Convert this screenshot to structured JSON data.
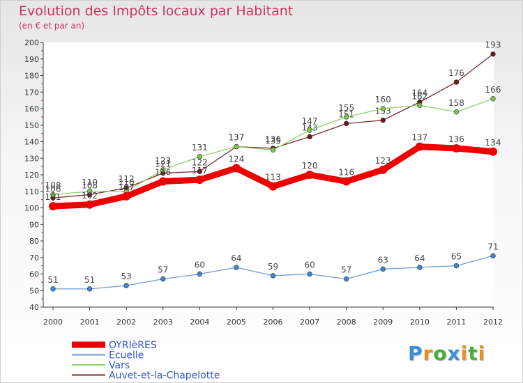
{
  "header": {
    "title": "Evolution des Impôts locaux par Habitant",
    "subtitle": "(en € et par an)"
  },
  "logo": {
    "letters": [
      "P",
      "r",
      "o",
      "x",
      "i",
      "t",
      "i"
    ],
    "colors": [
      "#3a8fd6",
      "#e8901a",
      "#4caf3a",
      "#3a8fd6",
      "#e8901a",
      "#4caf3a",
      "#e8901a"
    ]
  },
  "chart_data": {
    "type": "line",
    "title": "Evolution des Impôts locaux par Habitant",
    "subtitle": "(en € et par an)",
    "xlabel": "",
    "ylabel": "",
    "ylim": [
      40,
      200
    ],
    "yticks": [
      40,
      50,
      60,
      70,
      80,
      90,
      100,
      110,
      120,
      130,
      140,
      150,
      160,
      170,
      180,
      190,
      200
    ],
    "grid": false,
    "legend_position": "bottom-left",
    "x": [
      "2000",
      "2001",
      "2002",
      "2003",
      "2004",
      "2005",
      "2006",
      "2007",
      "2008",
      "2009",
      "2010",
      "2011",
      "2012"
    ],
    "series": [
      {
        "name": "Auvet-et-la-Chapelotte",
        "color": "#7a2a2a",
        "marker": "#6b1a1a",
        "values": [
          106,
          108,
          112,
          121,
          122,
          137,
          136,
          143,
          151,
          153,
          164,
          176,
          193
        ],
        "labels": [
          "106",
          "108",
          "112",
          "121",
          "122",
          "137",
          "136",
          "143",
          "151",
          "153",
          "164",
          "176",
          "193"
        ]
      },
      {
        "name": "Vars",
        "color": "#8fd16b",
        "marker": "#7cc64f",
        "values": [
          108,
          110,
          110,
          123,
          131,
          137,
          135,
          147,
          155,
          160,
          162,
          158,
          166
        ],
        "labels": [
          "108",
          "110",
          "110",
          "123",
          "131",
          "137",
          "135",
          "147",
          "155",
          "160",
          "162",
          "158",
          "166"
        ]
      },
      {
        "name": "Écuelle",
        "color": "#6b9bd1",
        "marker": "#3f86cc",
        "values": [
          51,
          51,
          53,
          57,
          60,
          64,
          59,
          60,
          57,
          63,
          64,
          65,
          71
        ],
        "labels": [
          "51",
          "51",
          "53",
          "57",
          "60",
          "64",
          "59",
          "60",
          "57",
          "63",
          "64",
          "65",
          "71"
        ]
      },
      {
        "name": "OYRIèRES",
        "color": "#ee0000",
        "marker": "#ee0000",
        "values": [
          101,
          102,
          107,
          116,
          117,
          124,
          113,
          120,
          116,
          123,
          137,
          136,
          134
        ],
        "labels": [
          "101",
          "102",
          "107",
          "116",
          "117",
          "124",
          "113",
          "120",
          "116",
          "123",
          "137",
          "136",
          "134"
        ]
      }
    ],
    "legend": [
      "OYRIèRES",
      "Écuelle",
      "Vars",
      "Auvet-et-la-Chapelotte"
    ]
  }
}
